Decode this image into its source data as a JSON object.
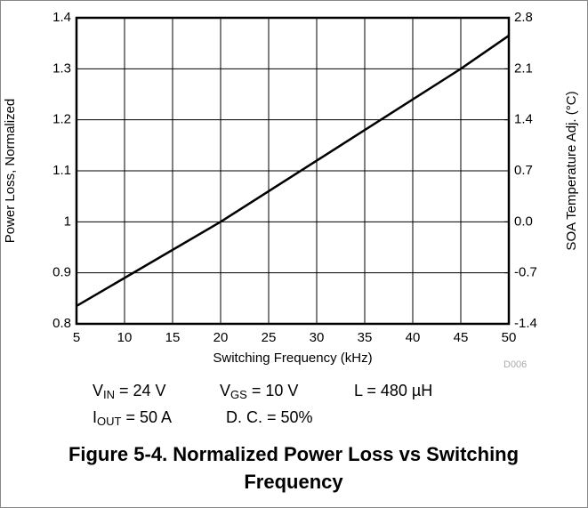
{
  "chart_data": {
    "type": "line",
    "x": [
      5,
      20,
      45,
      50
    ],
    "series": [
      {
        "name": "Power Loss",
        "color": "#000000",
        "values": [
          0.835,
          1.0,
          1.3,
          1.365
        ]
      }
    ],
    "xlim": [
      5,
      50
    ],
    "xticks": [
      5,
      10,
      15,
      20,
      25,
      30,
      35,
      40,
      45,
      50
    ],
    "ylim": [
      0.8,
      1.4
    ],
    "yticks": [
      0.8,
      0.9,
      1,
      1.1,
      1.2,
      1.3,
      1.4
    ],
    "y2lim": [
      -1.4,
      2.8
    ],
    "y2ticks": [
      -1.4,
      -0.7,
      {
        "value": 0,
        "label": "0.0"
      },
      0.7,
      1.4,
      2.1,
      2.8
    ],
    "grid": true,
    "xlabel": "Switching Frequency (kHz)",
    "ylabel": "Power Loss, Normalized",
    "y2label": "SOA Temperature Adj. (°C)",
    "code": "D006",
    "conditions": [
      {
        "main": "V",
        "sub": "IN",
        "rest": " = 24 V"
      },
      {
        "main": "V",
        "sub": "GS",
        "rest": " = 10 V"
      },
      {
        "main": "L = 480 µH"
      },
      {
        "main": "I",
        "sub": "OUT",
        "rest": " = 50 A"
      },
      {
        "main": "D. C. = 50%"
      }
    ],
    "caption": [
      "Figure 5-4. Normalized Power Loss vs Switching",
      "Frequency"
    ]
  }
}
